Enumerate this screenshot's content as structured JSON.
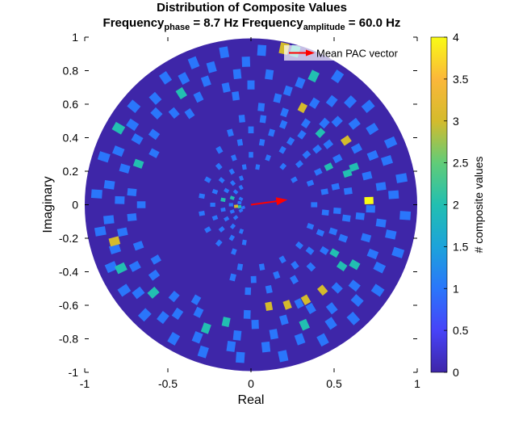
{
  "chart_data": {
    "type": "heatmap",
    "title": "Distribution of Composite Values",
    "subtitle_parts": {
      "p1": "Frequency",
      "p1_sub": "phase",
      "p2": " = 8.7 Hz Frequency",
      "p2_sub": "amplitude",
      "p3": " = 60.0 Hz"
    },
    "xlabel": "Real",
    "ylabel": "Imaginary",
    "xlim": [
      -1,
      1
    ],
    "ylim": [
      -1,
      1
    ],
    "xticks": [
      -1,
      -0.5,
      0,
      0.5,
      1
    ],
    "xtick_labels": [
      "-1",
      "-0.5",
      "0",
      "0.5",
      "1"
    ],
    "yticks": [
      1,
      0.8,
      0.6,
      0.4,
      0.2,
      0,
      -0.2,
      -0.4,
      -0.6,
      -0.8,
      -1
    ],
    "ytick_labels": [
      "1",
      "0.8",
      "0.6",
      "0.4",
      "0.2",
      "0",
      "-0.2",
      "-0.4",
      "-0.6",
      "-0.8",
      "-1"
    ],
    "colorbar": {
      "label": "# composite values",
      "range": [
        0,
        4
      ],
      "ticks": [
        0,
        0.5,
        1,
        1.5,
        2,
        2.5,
        3,
        3.5,
        4
      ],
      "tick_labels": [
        "0",
        "0.5",
        "1",
        "1.5",
        "2",
        "2.5",
        "3",
        "3.5",
        "4"
      ],
      "colormap": [
        "#3e26a8",
        "#4743f8",
        "#2a76fb",
        "#1ca3da",
        "#22bfb1",
        "#61cc78",
        "#d4bb2c",
        "#fbb73a",
        "#f9fb15"
      ]
    },
    "background_value": 0,
    "cells": [
      {
        "r": 0.96,
        "a": 78,
        "v": 3
      },
      {
        "r": 0.96,
        "a": 74,
        "v": 2
      },
      {
        "r": 0.93,
        "a": 86,
        "v": 1
      },
      {
        "r": 0.93,
        "a": 100,
        "v": 1
      },
      {
        "r": 0.92,
        "a": 112,
        "v": 1
      },
      {
        "r": 0.92,
        "a": 124,
        "v": 1
      },
      {
        "r": 0.92,
        "a": 140,
        "v": 1
      },
      {
        "r": 0.92,
        "a": 150,
        "v": 2
      },
      {
        "r": 0.93,
        "a": 162,
        "v": 1
      },
      {
        "r": 0.93,
        "a": 176,
        "v": 1
      },
      {
        "r": 0.92,
        "a": 190,
        "v": 1
      },
      {
        "r": 0.92,
        "a": 204,
        "v": 1
      },
      {
        "r": 0.92,
        "a": 214,
        "v": 1
      },
      {
        "r": 0.92,
        "a": 226,
        "v": 1
      },
      {
        "r": 0.93,
        "a": 240,
        "v": 1
      },
      {
        "r": 0.93,
        "a": 252,
        "v": 1
      },
      {
        "r": 0.92,
        "a": 266,
        "v": 1
      },
      {
        "r": 0.93,
        "a": 282,
        "v": 1
      },
      {
        "r": 0.92,
        "a": 298,
        "v": 1
      },
      {
        "r": 0.92,
        "a": 312,
        "v": 1
      },
      {
        "r": 0.92,
        "a": 326,
        "v": 1
      },
      {
        "r": 0.93,
        "a": 342,
        "v": 1
      },
      {
        "r": 0.93,
        "a": 356,
        "v": 1
      },
      {
        "r": 0.92,
        "a": 10,
        "v": 1
      },
      {
        "r": 0.92,
        "a": 24,
        "v": 1
      },
      {
        "r": 0.92,
        "a": 40,
        "v": 1
      },
      {
        "r": 0.93,
        "a": 56,
        "v": 1
      },
      {
        "r": 0.86,
        "a": 92,
        "v": 1
      },
      {
        "r": 0.86,
        "a": 106,
        "v": 1
      },
      {
        "r": 0.86,
        "a": 118,
        "v": 1
      },
      {
        "r": 0.86,
        "a": 132,
        "v": 1
      },
      {
        "r": 0.86,
        "a": 146,
        "v": 1
      },
      {
        "r": 0.86,
        "a": 158,
        "v": 1
      },
      {
        "r": 0.86,
        "a": 172,
        "v": 1
      },
      {
        "r": 0.86,
        "a": 186,
        "v": 1
      },
      {
        "r": 0.86,
        "a": 198,
        "v": 1
      },
      {
        "r": 0.87,
        "a": 206,
        "v": 2
      },
      {
        "r": 0.86,
        "a": 218,
        "v": 1
      },
      {
        "r": 0.86,
        "a": 232,
        "v": 1
      },
      {
        "r": 0.86,
        "a": 248,
        "v": 1
      },
      {
        "r": 0.86,
        "a": 262,
        "v": 1
      },
      {
        "r": 0.86,
        "a": 276,
        "v": 1
      },
      {
        "r": 0.86,
        "a": 290,
        "v": 1
      },
      {
        "r": 0.86,
        "a": 304,
        "v": 1
      },
      {
        "r": 0.86,
        "a": 318,
        "v": 1
      },
      {
        "r": 0.86,
        "a": 334,
        "v": 1
      },
      {
        "r": 0.86,
        "a": 348,
        "v": 1
      },
      {
        "r": 0.86,
        "a": 4,
        "v": 1
      },
      {
        "r": 0.86,
        "a": 18,
        "v": 1
      },
      {
        "r": 0.86,
        "a": 32,
        "v": 1
      },
      {
        "r": 0.86,
        "a": 46,
        "v": 1
      },
      {
        "r": 0.86,
        "a": 64,
        "v": 2
      },
      {
        "r": 0.79,
        "a": 96,
        "v": 1
      },
      {
        "r": 0.79,
        "a": 110,
        "v": 1
      },
      {
        "r": 0.79,
        "a": 122,
        "v": 2
      },
      {
        "r": 0.79,
        "a": 136,
        "v": 1
      },
      {
        "r": 0.79,
        "a": 150,
        "v": 1
      },
      {
        "r": 0.79,
        "a": 164,
        "v": 1
      },
      {
        "r": 0.79,
        "a": 178,
        "v": 1
      },
      {
        "r": 0.79,
        "a": 192,
        "v": 1
      },
      {
        "r": 0.79,
        "a": 208,
        "v": 1
      },
      {
        "r": 0.79,
        "a": 222,
        "v": 2
      },
      {
        "r": 0.79,
        "a": 236,
        "v": 1
      },
      {
        "r": 0.79,
        "a": 250,
        "v": 2
      },
      {
        "r": 0.79,
        "a": 264,
        "v": 1
      },
      {
        "r": 0.79,
        "a": 280,
        "v": 1
      },
      {
        "r": 0.79,
        "a": 294,
        "v": 2
      },
      {
        "r": 0.79,
        "a": 308,
        "v": 1
      },
      {
        "r": 0.79,
        "a": 322,
        "v": 1
      },
      {
        "r": 0.79,
        "a": 338,
        "v": 1
      },
      {
        "r": 0.79,
        "a": 352,
        "v": 1
      },
      {
        "r": 0.79,
        "a": 8,
        "v": 1
      },
      {
        "r": 0.79,
        "a": 22,
        "v": 1
      },
      {
        "r": 0.79,
        "a": 38,
        "v": 1
      },
      {
        "r": 0.79,
        "a": 52,
        "v": 1
      },
      {
        "r": 0.79,
        "a": 68,
        "v": 1
      },
      {
        "r": 0.79,
        "a": 82,
        "v": 1
      },
      {
        "r": 0.72,
        "a": 90,
        "v": 1
      },
      {
        "r": 0.72,
        "a": 102,
        "v": 1
      },
      {
        "r": 0.72,
        "a": 116,
        "v": 1
      },
      {
        "r": 0.72,
        "a": 130,
        "v": 1
      },
      {
        "r": 0.72,
        "a": 144,
        "v": 1
      },
      {
        "r": 0.72,
        "a": 160,
        "v": 2
      },
      {
        "r": 0.72,
        "a": 174,
        "v": 1
      },
      {
        "r": 0.72,
        "a": 186,
        "v": 1
      },
      {
        "r": 0.72,
        "a": 200,
        "v": 1
      },
      {
        "r": 0.72,
        "a": 216,
        "v": 1
      },
      {
        "r": 0.72,
        "a": 230,
        "v": 1
      },
      {
        "r": 0.72,
        "a": 244,
        "v": 1
      },
      {
        "r": 0.72,
        "a": 258,
        "v": 2
      },
      {
        "r": 0.72,
        "a": 272,
        "v": 1
      },
      {
        "r": 0.72,
        "a": 286,
        "v": 1
      },
      {
        "r": 0.72,
        "a": 300,
        "v": 1
      },
      {
        "r": 0.72,
        "a": 316,
        "v": 1
      },
      {
        "r": 0.72,
        "a": 330,
        "v": 2
      },
      {
        "r": 0.72,
        "a": 344,
        "v": 1
      },
      {
        "r": 0.72,
        "a": 358,
        "v": 1
      },
      {
        "r": 0.72,
        "a": 14,
        "v": 1
      },
      {
        "r": 0.72,
        "a": 28,
        "v": 1
      },
      {
        "r": 0.72,
        "a": 44,
        "v": 1
      },
      {
        "r": 0.72,
        "a": 58,
        "v": 1
      },
      {
        "r": 0.72,
        "a": 72,
        "v": 1
      },
      {
        "r": 0.66,
        "a": 98,
        "v": 1
      },
      {
        "r": 0.66,
        "a": 124,
        "v": 1
      },
      {
        "r": 0.66,
        "a": 152,
        "v": 1
      },
      {
        "r": 0.66,
        "a": 180,
        "v": 1
      },
      {
        "r": 0.66,
        "a": 210,
        "v": 1
      },
      {
        "r": 0.66,
        "a": 240,
        "v": 1
      },
      {
        "r": 0.66,
        "a": 268,
        "v": 1
      },
      {
        "r": 0.66,
        "a": 296,
        "v": 1
      },
      {
        "r": 0.66,
        "a": 326,
        "v": 2
      },
      {
        "r": 0.66,
        "a": 354,
        "v": 1
      },
      {
        "r": 0.66,
        "a": 20,
        "v": 2
      },
      {
        "r": 0.66,
        "a": 48,
        "v": 1
      },
      {
        "r": 0.66,
        "a": 76,
        "v": 1
      },
      {
        "r": 0.66,
        "a": 62,
        "v": 3
      },
      {
        "r": 0.71,
        "a": 2,
        "v": 4
      },
      {
        "r": 0.67,
        "a": 310,
        "v": 3
      },
      {
        "r": 0.66,
        "a": 300,
        "v": 3
      },
      {
        "r": 0.64,
        "a": 290,
        "v": 3
      },
      {
        "r": 0.62,
        "a": 280,
        "v": 3
      },
      {
        "r": 0.85,
        "a": 195,
        "v": 3
      },
      {
        "r": 0.69,
        "a": 34,
        "v": 3
      },
      {
        "r": 0.61,
        "a": 18,
        "v": 2
      },
      {
        "r": 0.58,
        "a": 330,
        "v": 2
      },
      {
        "r": 0.6,
        "a": 46,
        "v": 2
      },
      {
        "r": 0.59,
        "a": 8,
        "v": 1
      },
      {
        "r": 0.58,
        "a": 352,
        "v": 1
      },
      {
        "r": 0.59,
        "a": 340,
        "v": 1
      },
      {
        "r": 0.59,
        "a": 28,
        "v": 1
      },
      {
        "r": 0.59,
        "a": 38,
        "v": 1
      },
      {
        "r": 0.59,
        "a": 56,
        "v": 1
      },
      {
        "r": 0.59,
        "a": 70,
        "v": 1
      },
      {
        "r": 0.59,
        "a": 84,
        "v": 1
      },
      {
        "r": 0.52,
        "a": 300,
        "v": 1
      },
      {
        "r": 0.52,
        "a": 314,
        "v": 1
      },
      {
        "r": 0.52,
        "a": 328,
        "v": 1
      },
      {
        "r": 0.52,
        "a": 342,
        "v": 1
      },
      {
        "r": 0.52,
        "a": 356,
        "v": 1
      },
      {
        "r": 0.52,
        "a": 12,
        "v": 1
      },
      {
        "r": 0.52,
        "a": 26,
        "v": 2
      },
      {
        "r": 0.52,
        "a": 40,
        "v": 1
      },
      {
        "r": 0.52,
        "a": 54,
        "v": 1
      },
      {
        "r": 0.52,
        "a": 68,
        "v": 1
      },
      {
        "r": 0.52,
        "a": 82,
        "v": 1
      },
      {
        "r": 0.52,
        "a": 96,
        "v": 1
      },
      {
        "r": 0.52,
        "a": 282,
        "v": 1
      },
      {
        "r": 0.52,
        "a": 268,
        "v": 1
      },
      {
        "r": 0.45,
        "a": 290,
        "v": 1
      },
      {
        "r": 0.45,
        "a": 306,
        "v": 1
      },
      {
        "r": 0.45,
        "a": 322,
        "v": 1
      },
      {
        "r": 0.45,
        "a": 338,
        "v": 1
      },
      {
        "r": 0.45,
        "a": 354,
        "v": 1
      },
      {
        "r": 0.45,
        "a": 10,
        "v": 1
      },
      {
        "r": 0.45,
        "a": 26,
        "v": 1
      },
      {
        "r": 0.45,
        "a": 42,
        "v": 1
      },
      {
        "r": 0.45,
        "a": 58,
        "v": 1
      },
      {
        "r": 0.45,
        "a": 74,
        "v": 1
      },
      {
        "r": 0.45,
        "a": 90,
        "v": 1
      },
      {
        "r": 0.45,
        "a": 106,
        "v": 1
      },
      {
        "r": 0.45,
        "a": 272,
        "v": 1
      },
      {
        "r": 0.45,
        "a": 256,
        "v": 1
      },
      {
        "r": 0.38,
        "a": 100,
        "v": 1
      },
      {
        "r": 0.38,
        "a": 80,
        "v": 1
      },
      {
        "r": 0.38,
        "a": 60,
        "v": 1
      },
      {
        "r": 0.38,
        "a": 40,
        "v": 1
      },
      {
        "r": 0.38,
        "a": 20,
        "v": 1
      },
      {
        "r": 0.38,
        "a": 0,
        "v": 1
      },
      {
        "r": 0.38,
        "a": 340,
        "v": 1
      },
      {
        "r": 0.38,
        "a": 320,
        "v": 1
      },
      {
        "r": 0.38,
        "a": 300,
        "v": 1
      },
      {
        "r": 0.38,
        "a": 280,
        "v": 1
      },
      {
        "r": 0.38,
        "a": 260,
        "v": 1
      },
      {
        "r": 0.38,
        "a": 120,
        "v": 1
      },
      {
        "r": 0.3,
        "a": 110,
        "v": 1
      },
      {
        "r": 0.3,
        "a": 130,
        "v": 1
      },
      {
        "r": 0.3,
        "a": 150,
        "v": 1
      },
      {
        "r": 0.3,
        "a": 90,
        "v": 1
      },
      {
        "r": 0.3,
        "a": 70,
        "v": 1
      },
      {
        "r": 0.3,
        "a": 50,
        "v": 1
      },
      {
        "r": 0.3,
        "a": 30,
        "v": 1
      },
      {
        "r": 0.3,
        "a": 250,
        "v": 1
      },
      {
        "r": 0.3,
        "a": 230,
        "v": 1
      },
      {
        "r": 0.3,
        "a": 210,
        "v": 1
      },
      {
        "r": 0.3,
        "a": 190,
        "v": 1
      },
      {
        "r": 0.3,
        "a": 170,
        "v": 1
      },
      {
        "r": 0.23,
        "a": 120,
        "v": 1
      },
      {
        "r": 0.23,
        "a": 140,
        "v": 1
      },
      {
        "r": 0.23,
        "a": 160,
        "v": 1
      },
      {
        "r": 0.23,
        "a": 180,
        "v": 1
      },
      {
        "r": 0.23,
        "a": 200,
        "v": 1
      },
      {
        "r": 0.23,
        "a": 220,
        "v": 1
      },
      {
        "r": 0.23,
        "a": 240,
        "v": 1
      },
      {
        "r": 0.23,
        "a": 100,
        "v": 1
      },
      {
        "r": 0.23,
        "a": 80,
        "v": 1
      },
      {
        "r": 0.23,
        "a": 260,
        "v": 1
      },
      {
        "r": 0.17,
        "a": 130,
        "v": 1
      },
      {
        "r": 0.17,
        "a": 150,
        "v": 1
      },
      {
        "r": 0.17,
        "a": 170,
        "v": 2
      },
      {
        "r": 0.17,
        "a": 190,
        "v": 1
      },
      {
        "r": 0.17,
        "a": 210,
        "v": 1
      },
      {
        "r": 0.17,
        "a": 230,
        "v": 1
      },
      {
        "r": 0.17,
        "a": 110,
        "v": 1
      },
      {
        "r": 0.17,
        "a": 250,
        "v": 1
      },
      {
        "r": 0.12,
        "a": 140,
        "v": 1
      },
      {
        "r": 0.12,
        "a": 160,
        "v": 2
      },
      {
        "r": 0.12,
        "a": 180,
        "v": 1
      },
      {
        "r": 0.12,
        "a": 200,
        "v": 1
      },
      {
        "r": 0.12,
        "a": 220,
        "v": 1
      },
      {
        "r": 0.12,
        "a": 120,
        "v": 1
      },
      {
        "r": 0.07,
        "a": 150,
        "v": 1
      },
      {
        "r": 0.07,
        "a": 170,
        "v": 1
      },
      {
        "r": 0.07,
        "a": 190,
        "v": 2
      },
      {
        "r": 0.07,
        "a": 210,
        "v": 1
      },
      {
        "r": 0.09,
        "a": 186,
        "v": 3
      },
      {
        "r": 0.05,
        "a": 200,
        "v": 1
      }
    ],
    "vector": {
      "x": 0.22,
      "y": 0.03
    },
    "legend": {
      "entries": [
        "Mean PAC vector"
      ],
      "position": "top-right",
      "color": "#ff0000"
    }
  }
}
